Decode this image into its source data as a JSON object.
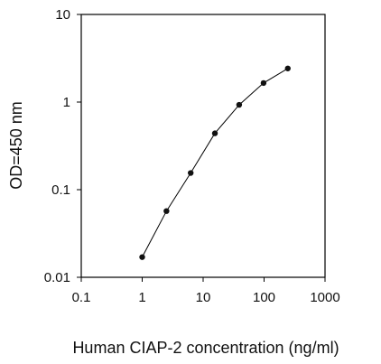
{
  "chart_data": {
    "type": "scatter",
    "title": "",
    "xlabel": "Human CIAP-2 concentration (ng/ml)",
    "ylabel": "OD=450 nm",
    "x_scale": "log",
    "y_scale": "log",
    "xlim": [
      0.1,
      1000
    ],
    "ylim": [
      0.01,
      10
    ],
    "x_ticks": [
      {
        "value": 0.1,
        "label": "0.1"
      },
      {
        "value": 1,
        "label": "1"
      },
      {
        "value": 10,
        "label": "10"
      },
      {
        "value": 100,
        "label": "100"
      },
      {
        "value": 1000,
        "label": "1000"
      }
    ],
    "y_ticks": [
      {
        "value": 0.01,
        "label": "0.01"
      },
      {
        "value": 0.1,
        "label": "0.1"
      },
      {
        "value": 1,
        "label": "1"
      },
      {
        "value": 10,
        "label": "10"
      }
    ],
    "grid": false,
    "legend": "none",
    "series": [
      {
        "x": [
          1,
          2.5,
          6.25,
          15.6,
          39,
          98,
          245
        ],
        "y": [
          0.017,
          0.057,
          0.155,
          0.44,
          0.93,
          1.65,
          2.42
        ],
        "marker": "circle",
        "line": "solid",
        "color": "#000000"
      }
    ]
  }
}
